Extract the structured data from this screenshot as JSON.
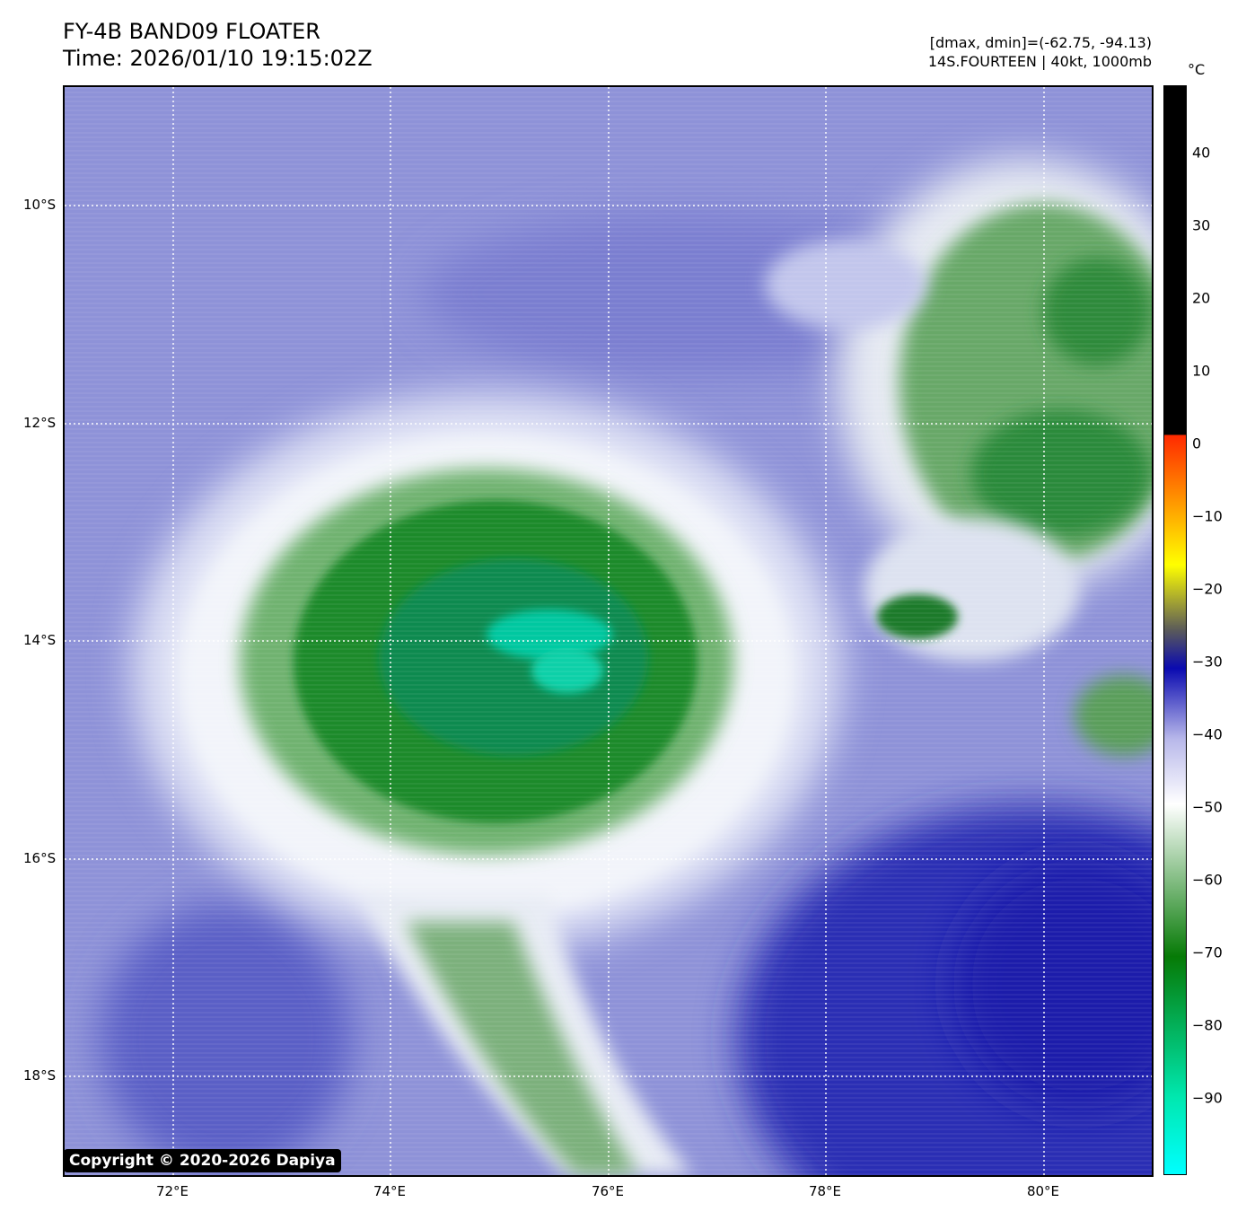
{
  "header": {
    "title": "FY-4B BAND09 FLOATER",
    "time": "Time: 2026/01/10 19:15:02Z",
    "range": "[dmax, dmin]=(-62.75, -94.13)",
    "storm": "14S.FOURTEEN | 40kt, 1000mb"
  },
  "map": {
    "lat_labels": [
      "10°S",
      "12°S",
      "14°S",
      "16°S",
      "18°S"
    ],
    "lon_labels": [
      "72°E",
      "74°E",
      "76°E",
      "78°E",
      "80°E"
    ],
    "copyright": "Copyright © 2020-2026 Dapiya"
  },
  "colorbar": {
    "unit": "°C",
    "tick_labels": [
      "40",
      "30",
      "20",
      "10",
      "0",
      "−10",
      "−20",
      "−30",
      "−40",
      "−50",
      "−60",
      "−70",
      "−80",
      "−90"
    ],
    "colors": {
      "warm": "#000000",
      "red": "#ff2a00",
      "yellow": "#ffff00",
      "gray": "#5a5a5a",
      "blue": "#0a0ab0",
      "lavender": "#b8b8ea",
      "white": "#ffffff",
      "green": "#067a06",
      "teal": "#00e8b0",
      "cyan": "#00ffff"
    }
  }
}
